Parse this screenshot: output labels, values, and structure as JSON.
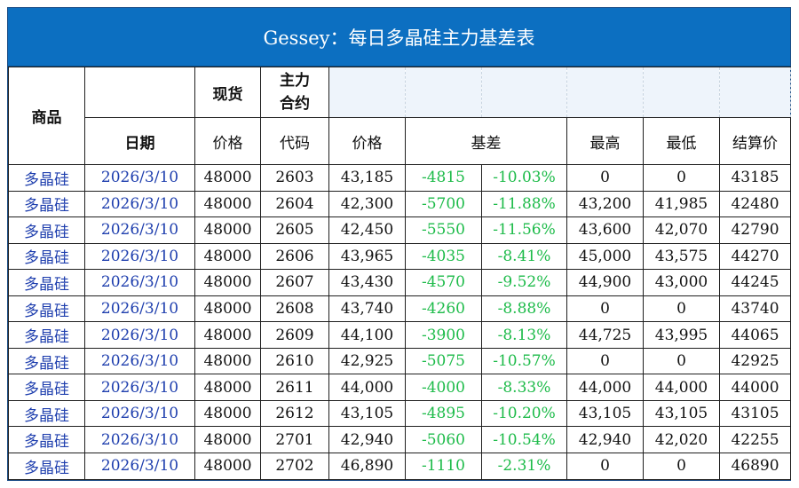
{
  "title": "Gessey：每日多晶硅主力基差表",
  "header": {
    "product": "商品",
    "spot": "现货",
    "main_contract_line1": "主力",
    "main_contract_line2": "合约",
    "date": "日期",
    "price": "价格",
    "code": "代码",
    "contract_price": "价格",
    "basis": "基差",
    "high": "最高",
    "low": "最低",
    "settle": "结算价"
  },
  "rows": [
    {
      "product": "多晶硅",
      "date": "2026/3/10",
      "spot": "48000",
      "code": "2603",
      "price": "43,185",
      "basis": "-4815",
      "basis_pct": "-10.03%",
      "high": "0",
      "low": "0",
      "settle": "43185"
    },
    {
      "product": "多晶硅",
      "date": "2026/3/10",
      "spot": "48000",
      "code": "2604",
      "price": "42,300",
      "basis": "-5700",
      "basis_pct": "-11.88%",
      "high": "43,200",
      "low": "41,985",
      "settle": "42480"
    },
    {
      "product": "多晶硅",
      "date": "2026/3/10",
      "spot": "48000",
      "code": "2605",
      "price": "42,450",
      "basis": "-5550",
      "basis_pct": "-11.56%",
      "high": "43,600",
      "low": "42,070",
      "settle": "42790"
    },
    {
      "product": "多晶硅",
      "date": "2026/3/10",
      "spot": "48000",
      "code": "2606",
      "price": "43,965",
      "basis": "-4035",
      "basis_pct": "-8.41%",
      "high": "45,000",
      "low": "43,575",
      "settle": "44270"
    },
    {
      "product": "多晶硅",
      "date": "2026/3/10",
      "spot": "48000",
      "code": "2607",
      "price": "43,430",
      "basis": "-4570",
      "basis_pct": "-9.52%",
      "high": "44,900",
      "low": "43,000",
      "settle": "44245"
    },
    {
      "product": "多晶硅",
      "date": "2026/3/10",
      "spot": "48000",
      "code": "2608",
      "price": "43,740",
      "basis": "-4260",
      "basis_pct": "-8.88%",
      "high": "0",
      "low": "0",
      "settle": "43740"
    },
    {
      "product": "多晶硅",
      "date": "2026/3/10",
      "spot": "48000",
      "code": "2609",
      "price": "44,100",
      "basis": "-3900",
      "basis_pct": "-8.13%",
      "high": "44,725",
      "low": "43,995",
      "settle": "44065"
    },
    {
      "product": "多晶硅",
      "date": "2026/3/10",
      "spot": "48000",
      "code": "2610",
      "price": "42,925",
      "basis": "-5075",
      "basis_pct": "-10.57%",
      "high": "0",
      "low": "0",
      "settle": "42925"
    },
    {
      "product": "多晶硅",
      "date": "2026/3/10",
      "spot": "48000",
      "code": "2611",
      "price": "44,000",
      "basis": "-4000",
      "basis_pct": "-8.33%",
      "high": "44,000",
      "low": "44,000",
      "settle": "44000"
    },
    {
      "product": "多晶硅",
      "date": "2026/3/10",
      "spot": "48000",
      "code": "2612",
      "price": "43,105",
      "basis": "-4895",
      "basis_pct": "-10.20%",
      "high": "43,105",
      "low": "43,105",
      "settle": "43105"
    },
    {
      "product": "多晶硅",
      "date": "2026/3/10",
      "spot": "48000",
      "code": "2701",
      "price": "42,940",
      "basis": "-5060",
      "basis_pct": "-10.54%",
      "high": "42,940",
      "low": "42,020",
      "settle": "42255"
    },
    {
      "product": "多晶硅",
      "date": "2026/3/10",
      "spot": "48000",
      "code": "2702",
      "price": "46,890",
      "basis": "-1110",
      "basis_pct": "-2.31%",
      "high": "0",
      "low": "0",
      "settle": "46890"
    }
  ],
  "colors": {
    "title_bg": "#0c6fc1",
    "product_text": "#1f3fae",
    "basis_text": "#1dbb49"
  }
}
